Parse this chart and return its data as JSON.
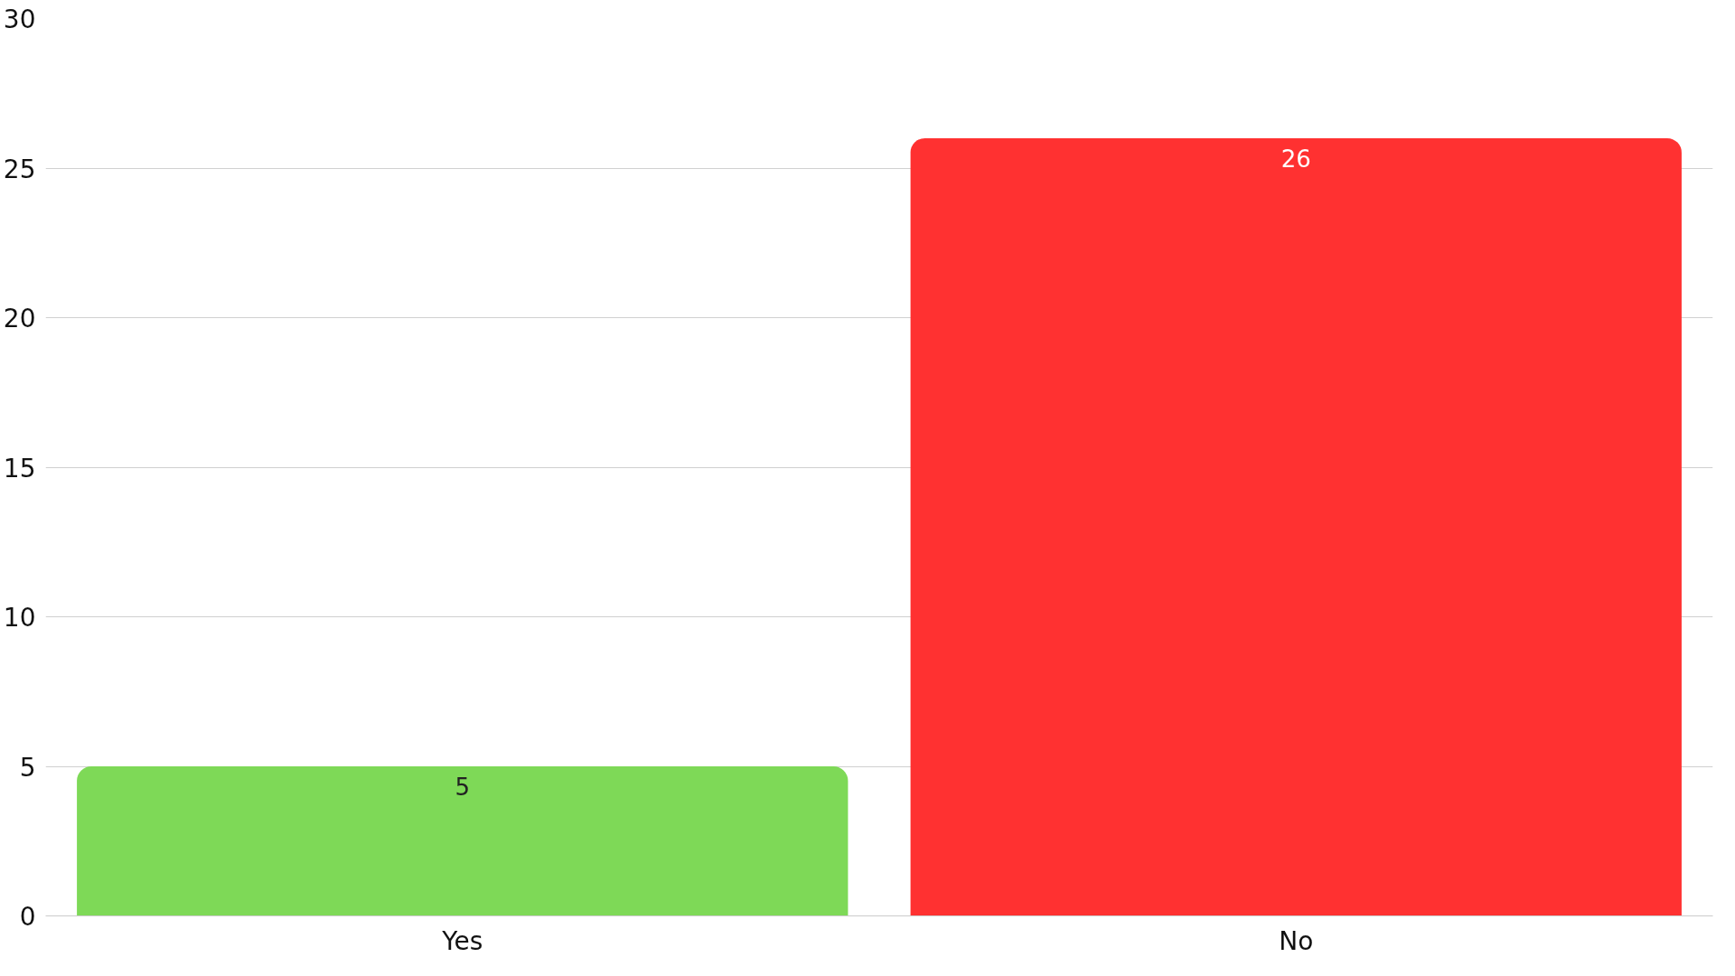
{
  "chart_data": {
    "type": "bar",
    "categories": [
      "Yes",
      "No"
    ],
    "values": [
      5,
      26
    ],
    "colors": [
      "#7ed957",
      "#ff3131"
    ],
    "ylim": [
      0,
      30
    ],
    "yticks": [
      0,
      5,
      10,
      15,
      20,
      25,
      30
    ],
    "grid": "y",
    "data_labels": true
  }
}
